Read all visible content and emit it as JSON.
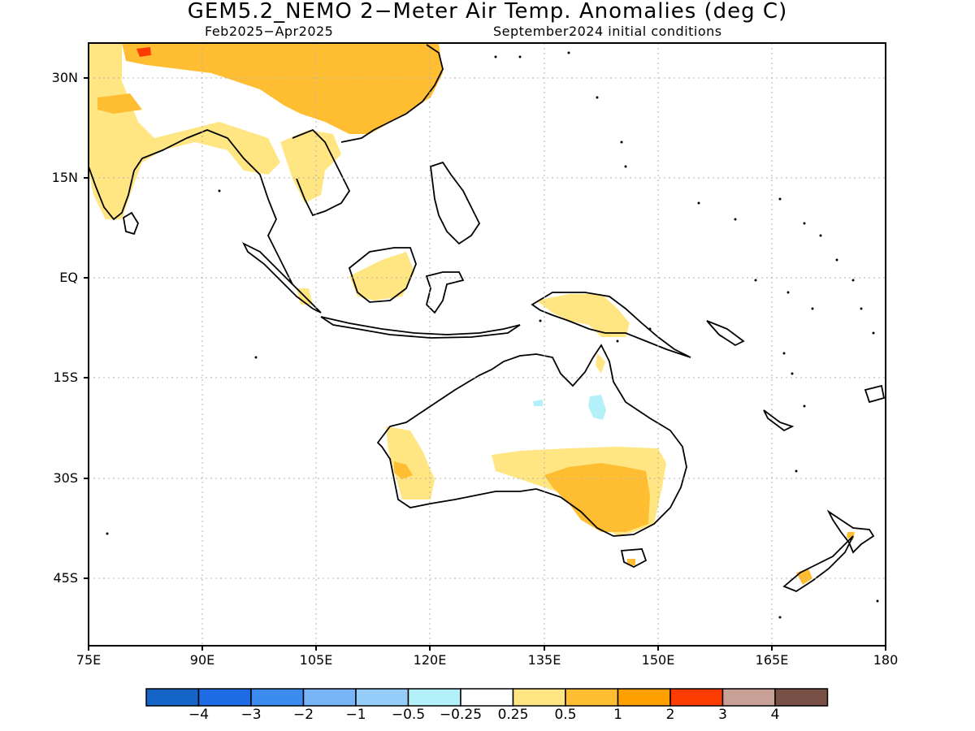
{
  "title": "GEM5.2_NEMO 2−Meter Air Temp. Anomalies (deg C)",
  "subtitle_left": "Feb2025−Apr2025",
  "subtitle_right": "September2024 initial conditions",
  "lat_labels": [
    "30N",
    "15N",
    "EQ",
    "15S",
    "30S",
    "45S"
  ],
  "lon_labels": [
    "75E",
    "90E",
    "105E",
    "120E",
    "135E",
    "150E",
    "165E",
    "180"
  ],
  "colorbar": {
    "colors": [
      "#1565c8",
      "#1e6be6",
      "#3c8cf0",
      "#78b4f8",
      "#96cdf8",
      "#b4f0fa",
      "#ffffff",
      "#ffe682",
      "#ffbe32",
      "#ffa000",
      "#ff3c00",
      "#c8a096",
      "#785046"
    ],
    "labels": [
      "−4",
      "−3",
      "−2",
      "−1",
      "−0.5",
      "−0.25",
      "0.25",
      "0.5",
      "1",
      "2",
      "3",
      "4"
    ]
  },
  "chart_data": {
    "type": "heatmap",
    "title": "GEM5.2_NEMO 2−Meter Air Temp. Anomalies (deg C)",
    "lon_range": [
      75,
      180
    ],
    "lat_range": [
      -53,
      35
    ],
    "grid": true,
    "categories": [
      "< −4",
      "−4 to −3",
      "−3 to −2",
      "−2 to −1",
      "−1 to −0.5",
      "−0.5 to −0.25",
      "−0.25 to 0.25",
      "0.25 to 0.5",
      "0.5 to 1",
      "1 to 2",
      "2 to 3",
      "3 to 4",
      "> 4"
    ],
    "regions": [
      {
        "name": "Northern India / Tibet / China",
        "anomaly_range": "0.5 to 1"
      },
      {
        "name": "Western Tibet small spot",
        "anomaly_range": "2 to 3"
      },
      {
        "name": "India, Myanmar, Thailand, Laos",
        "anomaly_range": "0.25 to 0.5"
      },
      {
        "name": "Borneo, Sumatra, New Guinea parts",
        "anomaly_range": "0.25 to 0.5"
      },
      {
        "name": "Western Australia",
        "anomaly_range": "0.25 to 0.5"
      },
      {
        "name": "Southeastern Australia",
        "anomaly_range": "0.5 to 1"
      },
      {
        "name": "Northern Queensland / NT small patches",
        "anomaly_range": "−0.5 to −0.25"
      },
      {
        "name": "New Zealand South Island",
        "anomaly_range": "0.5 to 1"
      }
    ]
  }
}
